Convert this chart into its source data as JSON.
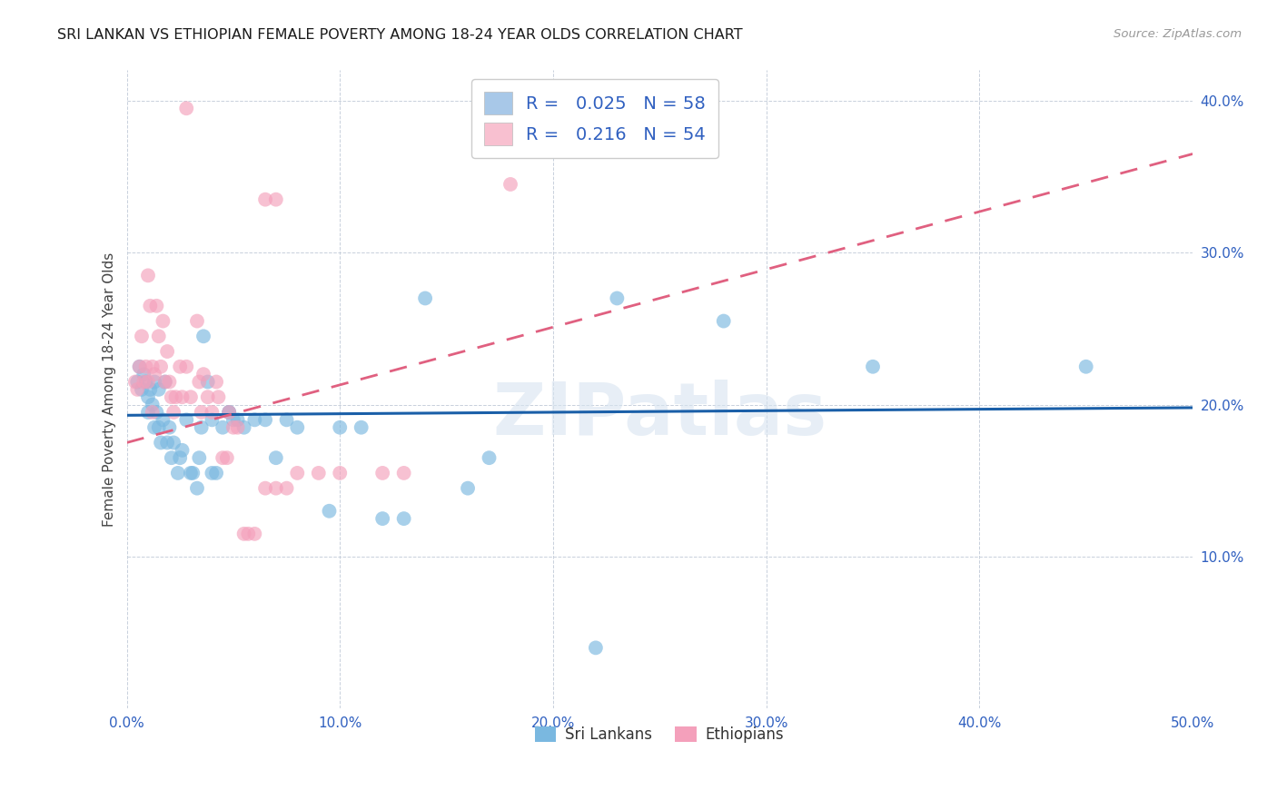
{
  "title": "SRI LANKAN VS ETHIOPIAN FEMALE POVERTY AMONG 18-24 YEAR OLDS CORRELATION CHART",
  "source": "Source: ZipAtlas.com",
  "ylabel": "Female Poverty Among 18-24 Year Olds",
  "xlabel_ticks": [
    0.0,
    0.1,
    0.2,
    0.3,
    0.4,
    0.5
  ],
  "xlabel_labels": [
    "0.0%",
    "10.0%",
    "20.0%",
    "30.0%",
    "40.0%",
    "50.0%"
  ],
  "ylabel_ticks": [
    0.0,
    0.1,
    0.2,
    0.3,
    0.4
  ],
  "ylabel_labels": [
    "",
    "10.0%",
    "20.0%",
    "30.0%",
    "40.0%"
  ],
  "xlim": [
    0.0,
    0.5
  ],
  "ylim": [
    0.0,
    0.42
  ],
  "watermark": "ZIPatlas",
  "sri_lankans_color": "#7ab8e0",
  "ethiopians_color": "#f4a0bb",
  "sri_lankans_line_color": "#1a5fa8",
  "ethiopians_line_color": "#e06080",
  "sri_lankans_line_slope": 0.01,
  "sri_lankans_line_intercept": 0.193,
  "ethiopians_line_slope": 0.38,
  "ethiopians_line_intercept": 0.175,
  "sri_lankans": [
    [
      0.005,
      0.215
    ],
    [
      0.006,
      0.225
    ],
    [
      0.007,
      0.21
    ],
    [
      0.008,
      0.22
    ],
    [
      0.009,
      0.215
    ],
    [
      0.01,
      0.205
    ],
    [
      0.01,
      0.195
    ],
    [
      0.011,
      0.21
    ],
    [
      0.012,
      0.2
    ],
    [
      0.013,
      0.215
    ],
    [
      0.013,
      0.185
    ],
    [
      0.014,
      0.195
    ],
    [
      0.015,
      0.21
    ],
    [
      0.015,
      0.185
    ],
    [
      0.016,
      0.175
    ],
    [
      0.017,
      0.19
    ],
    [
      0.018,
      0.215
    ],
    [
      0.019,
      0.175
    ],
    [
      0.02,
      0.185
    ],
    [
      0.021,
      0.165
    ],
    [
      0.022,
      0.175
    ],
    [
      0.024,
      0.155
    ],
    [
      0.025,
      0.165
    ],
    [
      0.026,
      0.17
    ],
    [
      0.028,
      0.19
    ],
    [
      0.03,
      0.155
    ],
    [
      0.031,
      0.155
    ],
    [
      0.033,
      0.145
    ],
    [
      0.034,
      0.165
    ],
    [
      0.035,
      0.185
    ],
    [
      0.036,
      0.245
    ],
    [
      0.038,
      0.215
    ],
    [
      0.04,
      0.19
    ],
    [
      0.04,
      0.155
    ],
    [
      0.042,
      0.155
    ],
    [
      0.045,
      0.185
    ],
    [
      0.048,
      0.195
    ],
    [
      0.048,
      0.195
    ],
    [
      0.05,
      0.19
    ],
    [
      0.052,
      0.19
    ],
    [
      0.055,
      0.185
    ],
    [
      0.06,
      0.19
    ],
    [
      0.065,
      0.19
    ],
    [
      0.07,
      0.165
    ],
    [
      0.075,
      0.19
    ],
    [
      0.08,
      0.185
    ],
    [
      0.095,
      0.13
    ],
    [
      0.1,
      0.185
    ],
    [
      0.11,
      0.185
    ],
    [
      0.12,
      0.125
    ],
    [
      0.13,
      0.125
    ],
    [
      0.14,
      0.27
    ],
    [
      0.16,
      0.145
    ],
    [
      0.17,
      0.165
    ],
    [
      0.23,
      0.27
    ],
    [
      0.28,
      0.255
    ],
    [
      0.35,
      0.225
    ],
    [
      0.45,
      0.225
    ],
    [
      0.22,
      0.04
    ]
  ],
  "ethiopians": [
    [
      0.004,
      0.215
    ],
    [
      0.005,
      0.21
    ],
    [
      0.006,
      0.225
    ],
    [
      0.007,
      0.245
    ],
    [
      0.008,
      0.215
    ],
    [
      0.009,
      0.225
    ],
    [
      0.01,
      0.215
    ],
    [
      0.01,
      0.285
    ],
    [
      0.011,
      0.265
    ],
    [
      0.012,
      0.225
    ],
    [
      0.012,
      0.195
    ],
    [
      0.013,
      0.22
    ],
    [
      0.014,
      0.265
    ],
    [
      0.015,
      0.245
    ],
    [
      0.016,
      0.225
    ],
    [
      0.017,
      0.255
    ],
    [
      0.018,
      0.215
    ],
    [
      0.019,
      0.235
    ],
    [
      0.02,
      0.215
    ],
    [
      0.021,
      0.205
    ],
    [
      0.022,
      0.195
    ],
    [
      0.023,
      0.205
    ],
    [
      0.025,
      0.225
    ],
    [
      0.026,
      0.205
    ],
    [
      0.028,
      0.225
    ],
    [
      0.03,
      0.205
    ],
    [
      0.033,
      0.255
    ],
    [
      0.034,
      0.215
    ],
    [
      0.035,
      0.195
    ],
    [
      0.036,
      0.22
    ],
    [
      0.038,
      0.205
    ],
    [
      0.04,
      0.195
    ],
    [
      0.042,
      0.215
    ],
    [
      0.043,
      0.205
    ],
    [
      0.045,
      0.165
    ],
    [
      0.047,
      0.165
    ],
    [
      0.048,
      0.195
    ],
    [
      0.05,
      0.185
    ],
    [
      0.052,
      0.185
    ],
    [
      0.055,
      0.115
    ],
    [
      0.057,
      0.115
    ],
    [
      0.06,
      0.115
    ],
    [
      0.065,
      0.145
    ],
    [
      0.07,
      0.145
    ],
    [
      0.075,
      0.145
    ],
    [
      0.08,
      0.155
    ],
    [
      0.09,
      0.155
    ],
    [
      0.1,
      0.155
    ],
    [
      0.12,
      0.155
    ],
    [
      0.13,
      0.155
    ],
    [
      0.028,
      0.395
    ],
    [
      0.065,
      0.335
    ],
    [
      0.07,
      0.335
    ],
    [
      0.18,
      0.345
    ]
  ]
}
